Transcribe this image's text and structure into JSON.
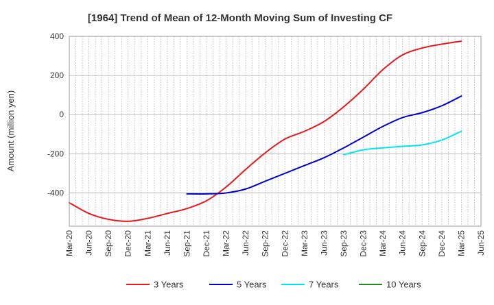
{
  "chart_data": {
    "type": "line",
    "title": "[1964]  Trend of Mean of 12-Month Moving Sum of Investing CF",
    "ylabel": "Amount (million yen)",
    "xlabel": "",
    "ylim": [
      -570,
      400
    ],
    "yticks": [
      400,
      200,
      0,
      -200,
      -400
    ],
    "x_tick_labels": [
      "Mar-20",
      "Jun-20",
      "Sep-20",
      "Dec-20",
      "Mar-21",
      "Jun-21",
      "Sep-21",
      "Dec-21",
      "Mar-22",
      "Jun-22",
      "Sep-22",
      "Dec-22",
      "Mar-23",
      "Jun-23",
      "Sep-23",
      "Dec-23",
      "Mar-24",
      "Jun-24",
      "Sep-24",
      "Dec-24",
      "Mar-25",
      "Jun-25"
    ],
    "grid": true,
    "legend_position": "bottom",
    "series": [
      {
        "name": "3 Years",
        "color": "#e41a1c",
        "x": [
          "Mar-20",
          "Jun-20",
          "Sep-20",
          "Dec-20",
          "Mar-21",
          "Jun-21",
          "Sep-21",
          "Dec-21",
          "Mar-22",
          "Jun-22",
          "Sep-22",
          "Dec-22",
          "Mar-23",
          "Jun-23",
          "Sep-23",
          "Dec-23",
          "Mar-24",
          "Jun-24",
          "Sep-24",
          "Dec-24",
          "Mar-25"
        ],
        "values": [
          -450,
          -505,
          -535,
          -545,
          -530,
          -505,
          -480,
          -440,
          -370,
          -280,
          -195,
          -125,
          -85,
          -35,
          40,
          130,
          230,
          305,
          340,
          360,
          375
        ]
      },
      {
        "name": "5 Years",
        "color": "#0000cc",
        "x": [
          "Sep-21",
          "Dec-21",
          "Mar-22",
          "Jun-22",
          "Sep-22",
          "Dec-22",
          "Mar-23",
          "Jun-23",
          "Sep-23",
          "Dec-23",
          "Mar-24",
          "Jun-24",
          "Sep-24",
          "Dec-24",
          "Mar-25"
        ],
        "values": [
          -405,
          -405,
          -400,
          -380,
          -340,
          -300,
          -260,
          -220,
          -170,
          -115,
          -60,
          -15,
          10,
          45,
          95
        ]
      },
      {
        "name": "7 Years",
        "color": "#00e5ee",
        "x": [
          "Sep-23",
          "Dec-23",
          "Mar-24",
          "Jun-24",
          "Sep-24",
          "Dec-24",
          "Mar-25"
        ],
        "values": [
          -205,
          -180,
          -170,
          -162,
          -155,
          -130,
          -85
        ]
      },
      {
        "name": "10 Years",
        "color": "#228b22",
        "x": [],
        "values": []
      }
    ]
  }
}
